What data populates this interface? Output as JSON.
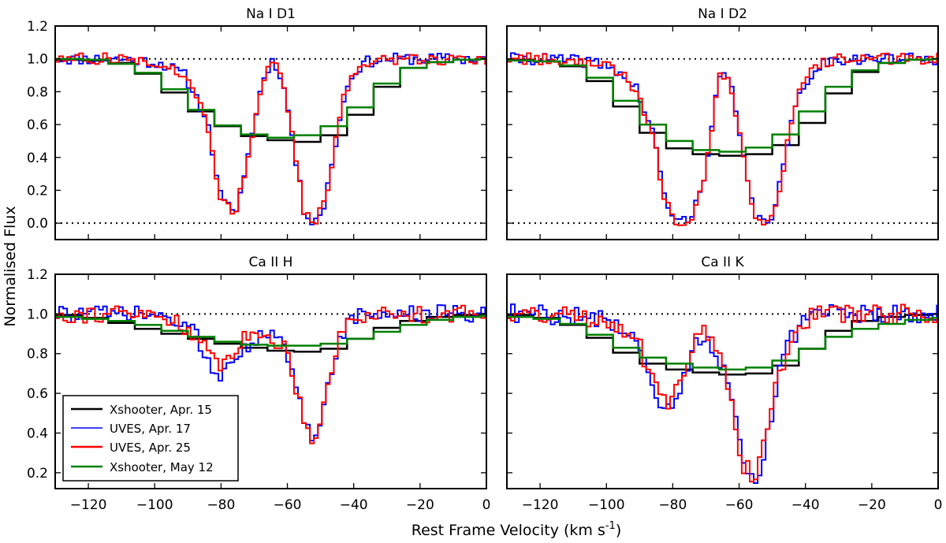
{
  "figure": {
    "xlabel": "Rest Frame Velocity (km s",
    "xlabel_sup": "-1",
    "xlabel_close": ")",
    "ylabel": "Normalised Flux"
  },
  "legend": {
    "placement": "lower-left of Ca II H panel",
    "entries": [
      {
        "label": "Xshooter, Apr. 15",
        "color": "#000000"
      },
      {
        "label": "UVES, Apr. 17",
        "color": "#0000ff"
      },
      {
        "label": "UVES, Apr. 25",
        "color": "#ff0000"
      },
      {
        "label": "Xshooter, May 12",
        "color": "#008000"
      }
    ]
  },
  "chart_data": [
    {
      "type": "line",
      "title": "Na I D1",
      "xlim": [
        -130,
        0
      ],
      "ylim": [
        -0.1,
        1.2
      ],
      "xticks": [
        -120,
        -100,
        -80,
        -60,
        -40,
        -20,
        0
      ],
      "yticks": [
        0.0,
        0.2,
        0.4,
        0.6,
        0.8,
        1.0,
        1.2
      ],
      "ref_lines": [
        1.0,
        0.0
      ],
      "series": [
        {
          "name": "Xshooter, Apr. 15",
          "color": "#000000",
          "step_width": 8,
          "x": [
            -130,
            -122,
            -114,
            -106,
            -98,
            -90,
            -82,
            -74,
            -66,
            -58,
            -50,
            -42,
            -34,
            -26,
            -18,
            -10,
            -2
          ],
          "y": [
            1.0,
            0.99,
            0.99,
            0.96,
            0.86,
            0.73,
            0.63,
            0.55,
            0.51,
            0.5,
            0.49,
            0.58,
            0.74,
            0.92,
            0.97,
            0.99,
            1.0
          ]
        },
        {
          "name": "UVES, Apr. 17",
          "color": "#0000ff",
          "step_width": 1.2,
          "x": [
            -130,
            -123.5,
            -117,
            -110.5,
            -104,
            -97.5,
            -91,
            -84.5,
            -80,
            -76,
            -73,
            -70,
            -67.5,
            -65,
            -62.5,
            -60,
            -57.5,
            -55,
            -52,
            -49,
            -46,
            -43,
            -40,
            -36.5,
            -30,
            -23.5,
            -17,
            -10.5,
            -4,
            0
          ],
          "y": [
            1.0,
            1.0,
            1.0,
            1.0,
            0.99,
            0.97,
            0.9,
            0.65,
            0.15,
            0.05,
            0.28,
            0.62,
            0.86,
            0.99,
            0.94,
            0.72,
            0.38,
            0.08,
            0.01,
            0.1,
            0.42,
            0.76,
            0.92,
            0.98,
            1.0,
            1.0,
            1.0,
            1.0,
            1.0,
            1.0
          ],
          "noise": 0.035,
          "seed": 11
        },
        {
          "name": "UVES, Apr. 25",
          "color": "#ff0000",
          "step_width": 1.2,
          "x": [
            -130,
            -123.5,
            -117,
            -110.5,
            -104,
            -97.5,
            -91,
            -84.5,
            -80,
            -76,
            -73,
            -70,
            -67.5,
            -65,
            -62.5,
            -60,
            -57.5,
            -55,
            -52,
            -49,
            -46,
            -43,
            -40,
            -36.5,
            -30,
            -23.5,
            -17,
            -10.5,
            -4,
            0
          ],
          "y": [
            1.0,
            1.0,
            1.0,
            1.0,
            0.99,
            0.97,
            0.9,
            0.65,
            0.15,
            0.05,
            0.28,
            0.62,
            0.86,
            0.99,
            0.94,
            0.72,
            0.38,
            0.08,
            0.01,
            0.1,
            0.42,
            0.76,
            0.92,
            0.98,
            1.0,
            1.0,
            1.0,
            1.0,
            1.0,
            1.0
          ],
          "noise": 0.035,
          "seed": 27
        },
        {
          "name": "Xshooter, May 12",
          "color": "#008000",
          "step_width": 8,
          "x": [
            -130,
            -122,
            -114,
            -106,
            -98,
            -90,
            -82,
            -74,
            -66,
            -58,
            -50,
            -42,
            -34,
            -26,
            -18,
            -10,
            -2
          ],
          "y": [
            1.0,
            1.0,
            0.99,
            0.95,
            0.88,
            0.75,
            0.63,
            0.56,
            0.52,
            0.52,
            0.55,
            0.63,
            0.78,
            0.92,
            0.97,
            0.99,
            1.0
          ]
        }
      ]
    },
    {
      "type": "line",
      "title": "Na I D2",
      "xlim": [
        -130,
        0
      ],
      "ylim": [
        -0.1,
        1.2
      ],
      "xticks": [
        -120,
        -100,
        -80,
        -60,
        -40,
        -20,
        0
      ],
      "yticks": [
        0.0,
        0.2,
        0.4,
        0.6,
        0.8,
        1.0,
        1.2
      ],
      "ref_lines": [
        1.0,
        0.0
      ],
      "series": [
        {
          "name": "Xshooter, Apr. 15",
          "color": "#000000",
          "step_width": 8,
          "x": [
            -130,
            -122,
            -114,
            -106,
            -98,
            -90,
            -82,
            -74,
            -66,
            -58,
            -50,
            -42,
            -34,
            -26,
            -18,
            -10,
            -2
          ],
          "y": [
            1.0,
            0.99,
            0.98,
            0.93,
            0.8,
            0.62,
            0.48,
            0.43,
            0.41,
            0.41,
            0.43,
            0.52,
            0.7,
            0.88,
            0.96,
            0.99,
            1.0
          ]
        },
        {
          "name": "UVES, Apr. 17",
          "color": "#0000ff",
          "step_width": 1.2,
          "x": [
            -130,
            -123.5,
            -117,
            -110.5,
            -104,
            -97.5,
            -91,
            -86,
            -83,
            -80,
            -77,
            -74,
            -71,
            -68,
            -65.5,
            -63,
            -60.5,
            -58,
            -55.5,
            -53,
            -50.5,
            -48,
            -45,
            -42,
            -38,
            -34,
            -30,
            -23.5,
            -17,
            -10.5,
            -4,
            0
          ],
          "y": [
            1.0,
            1.0,
            1.0,
            0.99,
            0.98,
            0.94,
            0.82,
            0.55,
            0.2,
            0.03,
            0.01,
            0.05,
            0.24,
            0.62,
            0.93,
            0.88,
            0.62,
            0.3,
            0.07,
            0.0,
            0.03,
            0.2,
            0.52,
            0.78,
            0.92,
            0.98,
            1.0,
            1.0,
            1.0,
            1.0,
            1.0,
            1.0
          ],
          "noise": 0.035,
          "seed": 41
        },
        {
          "name": "UVES, Apr. 25",
          "color": "#ff0000",
          "step_width": 1.2,
          "x": [
            -130,
            -123.5,
            -117,
            -110.5,
            -104,
            -97.5,
            -91,
            -86,
            -83,
            -80,
            -77,
            -74,
            -71,
            -68,
            -65.5,
            -63,
            -60.5,
            -58,
            -55.5,
            -53,
            -50.5,
            -48,
            -45,
            -42,
            -38,
            -34,
            -30,
            -23.5,
            -17,
            -10.5,
            -4,
            0
          ],
          "y": [
            1.0,
            1.0,
            1.0,
            0.99,
            0.98,
            0.94,
            0.82,
            0.55,
            0.2,
            0.03,
            0.01,
            0.05,
            0.24,
            0.62,
            0.93,
            0.88,
            0.62,
            0.3,
            0.07,
            0.0,
            0.03,
            0.2,
            0.52,
            0.78,
            0.92,
            0.98,
            1.0,
            1.0,
            1.0,
            1.0,
            1.0,
            1.0
          ],
          "noise": 0.035,
          "seed": 58
        },
        {
          "name": "Xshooter, May 12",
          "color": "#008000",
          "step_width": 8,
          "x": [
            -130,
            -122,
            -114,
            -106,
            -98,
            -90,
            -82,
            -74,
            -66,
            -58,
            -50,
            -42,
            -34,
            -26,
            -18,
            -10,
            -2
          ],
          "y": [
            0.99,
            0.99,
            0.98,
            0.94,
            0.83,
            0.66,
            0.54,
            0.46,
            0.43,
            0.44,
            0.48,
            0.6,
            0.76,
            0.9,
            0.96,
            0.99,
            1.0
          ]
        }
      ]
    },
    {
      "type": "line",
      "title": "Ca II H",
      "xlim": [
        -130,
        0
      ],
      "ylim": [
        0.12,
        1.2
      ],
      "xticks": [
        -120,
        -100,
        -80,
        -60,
        -40,
        -20,
        0
      ],
      "yticks": [
        0.2,
        0.4,
        0.6,
        0.8,
        1.0,
        1.2
      ],
      "ref_lines": [
        1.0
      ],
      "series": [
        {
          "name": "Xshooter, Apr. 15",
          "color": "#000000",
          "step_width": 8,
          "x": [
            -130,
            -122,
            -114,
            -106,
            -98,
            -90,
            -82,
            -74,
            -66,
            -58,
            -50,
            -42,
            -34,
            -26,
            -18,
            -10,
            -2
          ],
          "y": [
            1.0,
            0.99,
            0.97,
            0.94,
            0.91,
            0.89,
            0.86,
            0.84,
            0.82,
            0.81,
            0.81,
            0.84,
            0.91,
            0.95,
            0.98,
            0.99,
            1.0
          ]
        },
        {
          "name": "UVES, Apr. 17",
          "color": "#0000ff",
          "step_width": 1.2,
          "x": [
            -130,
            -120,
            -110,
            -100,
            -94,
            -90,
            -87,
            -84,
            -81.5,
            -79,
            -76,
            -73,
            -70,
            -67,
            -64,
            -61,
            -58.5,
            -56,
            -54,
            -52,
            -50,
            -48,
            -46,
            -44,
            -41,
            -38,
            -34,
            -30,
            -25,
            -20,
            -15,
            -10,
            -5,
            0
          ],
          "y": [
            1.0,
            1.0,
            1.0,
            0.99,
            0.97,
            0.93,
            0.87,
            0.78,
            0.68,
            0.73,
            0.8,
            0.84,
            0.87,
            0.88,
            0.88,
            0.83,
            0.71,
            0.55,
            0.42,
            0.38,
            0.46,
            0.62,
            0.78,
            0.9,
            0.96,
            0.99,
            1.0,
            1.0,
            1.0,
            1.0,
            1.0,
            1.0,
            1.0,
            1.0
          ],
          "noise": 0.045,
          "seed": 73
        },
        {
          "name": "UVES, Apr. 25",
          "color": "#ff0000",
          "step_width": 1.2,
          "x": [
            -130,
            -120,
            -110,
            -100,
            -94,
            -90,
            -87,
            -84,
            -81.5,
            -79,
            -76,
            -73,
            -70,
            -67,
            -64,
            -61,
            -58.5,
            -56,
            -54,
            -52,
            -50,
            -48,
            -46,
            -44,
            -41,
            -38,
            -34,
            -30,
            -25,
            -20,
            -15,
            -10,
            -5,
            0
          ],
          "y": [
            1.0,
            1.0,
            1.0,
            0.99,
            0.97,
            0.93,
            0.87,
            0.8,
            0.74,
            0.77,
            0.83,
            0.87,
            0.89,
            0.89,
            0.88,
            0.83,
            0.71,
            0.55,
            0.42,
            0.38,
            0.46,
            0.62,
            0.78,
            0.9,
            0.96,
            0.99,
            1.0,
            1.0,
            1.0,
            1.0,
            1.0,
            1.0,
            1.0,
            1.0
          ],
          "noise": 0.045,
          "seed": 91
        },
        {
          "name": "Xshooter, May 12",
          "color": "#008000",
          "step_width": 8,
          "x": [
            -130,
            -122,
            -114,
            -106,
            -98,
            -90,
            -82,
            -74,
            -66,
            -58,
            -50,
            -42,
            -34,
            -26,
            -18,
            -10,
            -2
          ],
          "y": [
            0.99,
            0.98,
            0.97,
            0.96,
            0.93,
            0.9,
            0.87,
            0.85,
            0.84,
            0.84,
            0.84,
            0.86,
            0.89,
            0.93,
            0.96,
            0.98,
            0.99
          ]
        }
      ]
    },
    {
      "type": "line",
      "title": "Ca II K",
      "xlim": [
        -130,
        0
      ],
      "ylim": [
        0.12,
        1.2
      ],
      "xticks": [
        -120,
        -100,
        -80,
        -60,
        -40,
        -20,
        0
      ],
      "yticks": [
        0.2,
        0.4,
        0.6,
        0.8,
        1.0,
        1.2
      ],
      "ref_lines": [
        1.0
      ],
      "series": [
        {
          "name": "Xshooter, Apr. 15",
          "color": "#000000",
          "step_width": 8,
          "x": [
            -130,
            -122,
            -114,
            -106,
            -98,
            -90,
            -82,
            -74,
            -66,
            -58,
            -50,
            -42,
            -34,
            -26,
            -18,
            -10,
            -2
          ],
          "y": [
            1.0,
            0.99,
            0.97,
            0.92,
            0.84,
            0.77,
            0.73,
            0.71,
            0.7,
            0.69,
            0.71,
            0.77,
            0.88,
            0.95,
            0.98,
            0.99,
            1.0
          ]
        },
        {
          "name": "UVES, Apr. 17",
          "color": "#0000ff",
          "step_width": 1.2,
          "x": [
            -130,
            -120,
            -110,
            -100,
            -94,
            -90,
            -87,
            -84,
            -81,
            -78,
            -75,
            -72,
            -69,
            -66,
            -63,
            -60.5,
            -58.5,
            -56.5,
            -54.5,
            -52.5,
            -50.5,
            -48,
            -45,
            -42,
            -38,
            -34,
            -30,
            -25,
            -20,
            -15,
            -10,
            -5,
            0
          ],
          "y": [
            1.0,
            1.0,
            0.99,
            0.97,
            0.93,
            0.85,
            0.7,
            0.57,
            0.53,
            0.6,
            0.78,
            0.88,
            0.86,
            0.78,
            0.62,
            0.4,
            0.24,
            0.18,
            0.19,
            0.3,
            0.48,
            0.68,
            0.84,
            0.94,
            0.99,
            1.0,
            1.0,
            1.0,
            1.0,
            1.0,
            1.0,
            1.0,
            1.0
          ],
          "noise": 0.05,
          "seed": 107
        },
        {
          "name": "UVES, Apr. 25",
          "color": "#ff0000",
          "step_width": 1.2,
          "x": [
            -130,
            -120,
            -110,
            -100,
            -94,
            -90,
            -87,
            -84,
            -81,
            -78,
            -75,
            -72,
            -69,
            -66,
            -63,
            -60.5,
            -58.5,
            -56.5,
            -54.5,
            -52.5,
            -50.5,
            -48,
            -45,
            -42,
            -38,
            -34,
            -30,
            -25,
            -20,
            -15,
            -10,
            -5,
            0
          ],
          "y": [
            1.0,
            1.0,
            0.99,
            0.97,
            0.93,
            0.85,
            0.7,
            0.58,
            0.55,
            0.63,
            0.82,
            0.92,
            0.88,
            0.78,
            0.6,
            0.38,
            0.24,
            0.2,
            0.21,
            0.32,
            0.5,
            0.7,
            0.85,
            0.94,
            0.99,
            1.0,
            1.0,
            1.0,
            1.0,
            1.0,
            1.0,
            1.0,
            1.0
          ],
          "noise": 0.05,
          "seed": 131
        },
        {
          "name": "Xshooter, May 12",
          "color": "#008000",
          "step_width": 8,
          "x": [
            -130,
            -122,
            -114,
            -106,
            -98,
            -90,
            -82,
            -74,
            -66,
            -58,
            -50,
            -42,
            -34,
            -26,
            -18,
            -10,
            -2
          ],
          "y": [
            0.99,
            0.98,
            0.97,
            0.93,
            0.86,
            0.8,
            0.76,
            0.74,
            0.72,
            0.72,
            0.74,
            0.79,
            0.86,
            0.91,
            0.94,
            0.96,
            0.98
          ]
        }
      ]
    }
  ]
}
